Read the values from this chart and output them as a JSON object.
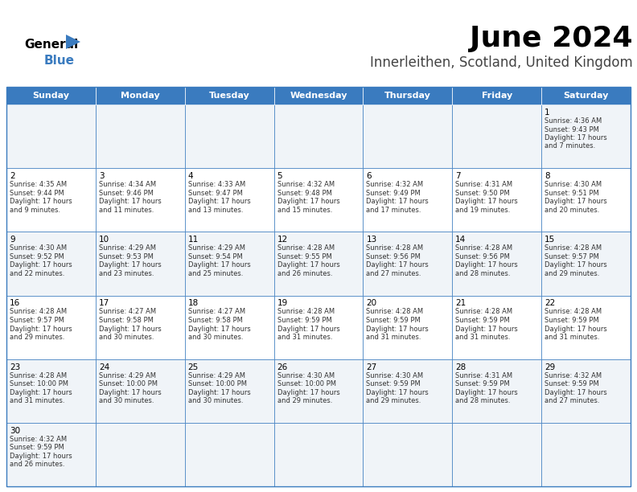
{
  "title": "June 2024",
  "subtitle": "Innerleithen, Scotland, United Kingdom",
  "days_of_week": [
    "Sunday",
    "Monday",
    "Tuesday",
    "Wednesday",
    "Thursday",
    "Friday",
    "Saturday"
  ],
  "header_bg": "#3a7bbf",
  "header_text": "#ffffff",
  "row_bg": [
    "#f0f4f8",
    "#ffffff",
    "#f0f4f8",
    "#ffffff",
    "#f0f4f8",
    "#f0f4f8"
  ],
  "border_color": "#3a7bbf",
  "inner_border_color": "#cccccc",
  "day_num_color": "#000000",
  "cell_text_color": "#333333",
  "calendar_data": [
    [
      {
        "day": "",
        "sunrise": "",
        "sunset": "",
        "daylight": ""
      },
      {
        "day": "",
        "sunrise": "",
        "sunset": "",
        "daylight": ""
      },
      {
        "day": "",
        "sunrise": "",
        "sunset": "",
        "daylight": ""
      },
      {
        "day": "",
        "sunrise": "",
        "sunset": "",
        "daylight": ""
      },
      {
        "day": "",
        "sunrise": "",
        "sunset": "",
        "daylight": ""
      },
      {
        "day": "",
        "sunrise": "",
        "sunset": "",
        "daylight": ""
      },
      {
        "day": "1",
        "sunrise": "4:36 AM",
        "sunset": "9:43 PM",
        "daylight": "17 hours\nand 7 minutes."
      }
    ],
    [
      {
        "day": "2",
        "sunrise": "4:35 AM",
        "sunset": "9:44 PM",
        "daylight": "17 hours\nand 9 minutes."
      },
      {
        "day": "3",
        "sunrise": "4:34 AM",
        "sunset": "9:46 PM",
        "daylight": "17 hours\nand 11 minutes."
      },
      {
        "day": "4",
        "sunrise": "4:33 AM",
        "sunset": "9:47 PM",
        "daylight": "17 hours\nand 13 minutes."
      },
      {
        "day": "5",
        "sunrise": "4:32 AM",
        "sunset": "9:48 PM",
        "daylight": "17 hours\nand 15 minutes."
      },
      {
        "day": "6",
        "sunrise": "4:32 AM",
        "sunset": "9:49 PM",
        "daylight": "17 hours\nand 17 minutes."
      },
      {
        "day": "7",
        "sunrise": "4:31 AM",
        "sunset": "9:50 PM",
        "daylight": "17 hours\nand 19 minutes."
      },
      {
        "day": "8",
        "sunrise": "4:30 AM",
        "sunset": "9:51 PM",
        "daylight": "17 hours\nand 20 minutes."
      }
    ],
    [
      {
        "day": "9",
        "sunrise": "4:30 AM",
        "sunset": "9:52 PM",
        "daylight": "17 hours\nand 22 minutes."
      },
      {
        "day": "10",
        "sunrise": "4:29 AM",
        "sunset": "9:53 PM",
        "daylight": "17 hours\nand 23 minutes."
      },
      {
        "day": "11",
        "sunrise": "4:29 AM",
        "sunset": "9:54 PM",
        "daylight": "17 hours\nand 25 minutes."
      },
      {
        "day": "12",
        "sunrise": "4:28 AM",
        "sunset": "9:55 PM",
        "daylight": "17 hours\nand 26 minutes."
      },
      {
        "day": "13",
        "sunrise": "4:28 AM",
        "sunset": "9:56 PM",
        "daylight": "17 hours\nand 27 minutes."
      },
      {
        "day": "14",
        "sunrise": "4:28 AM",
        "sunset": "9:56 PM",
        "daylight": "17 hours\nand 28 minutes."
      },
      {
        "day": "15",
        "sunrise": "4:28 AM",
        "sunset": "9:57 PM",
        "daylight": "17 hours\nand 29 minutes."
      }
    ],
    [
      {
        "day": "16",
        "sunrise": "4:28 AM",
        "sunset": "9:57 PM",
        "daylight": "17 hours\nand 29 minutes."
      },
      {
        "day": "17",
        "sunrise": "4:27 AM",
        "sunset": "9:58 PM",
        "daylight": "17 hours\nand 30 minutes."
      },
      {
        "day": "18",
        "sunrise": "4:27 AM",
        "sunset": "9:58 PM",
        "daylight": "17 hours\nand 30 minutes."
      },
      {
        "day": "19",
        "sunrise": "4:28 AM",
        "sunset": "9:59 PM",
        "daylight": "17 hours\nand 31 minutes."
      },
      {
        "day": "20",
        "sunrise": "4:28 AM",
        "sunset": "9:59 PM",
        "daylight": "17 hours\nand 31 minutes."
      },
      {
        "day": "21",
        "sunrise": "4:28 AM",
        "sunset": "9:59 PM",
        "daylight": "17 hours\nand 31 minutes."
      },
      {
        "day": "22",
        "sunrise": "4:28 AM",
        "sunset": "9:59 PM",
        "daylight": "17 hours\nand 31 minutes."
      }
    ],
    [
      {
        "day": "23",
        "sunrise": "4:28 AM",
        "sunset": "10:00 PM",
        "daylight": "17 hours\nand 31 minutes."
      },
      {
        "day": "24",
        "sunrise": "4:29 AM",
        "sunset": "10:00 PM",
        "daylight": "17 hours\nand 30 minutes."
      },
      {
        "day": "25",
        "sunrise": "4:29 AM",
        "sunset": "10:00 PM",
        "daylight": "17 hours\nand 30 minutes."
      },
      {
        "day": "26",
        "sunrise": "4:30 AM",
        "sunset": "10:00 PM",
        "daylight": "17 hours\nand 29 minutes."
      },
      {
        "day": "27",
        "sunrise": "4:30 AM",
        "sunset": "9:59 PM",
        "daylight": "17 hours\nand 29 minutes."
      },
      {
        "day": "28",
        "sunrise": "4:31 AM",
        "sunset": "9:59 PM",
        "daylight": "17 hours\nand 28 minutes."
      },
      {
        "day": "29",
        "sunrise": "4:32 AM",
        "sunset": "9:59 PM",
        "daylight": "17 hours\nand 27 minutes."
      }
    ],
    [
      {
        "day": "30",
        "sunrise": "4:32 AM",
        "sunset": "9:59 PM",
        "daylight": "17 hours\nand 26 minutes."
      },
      {
        "day": "",
        "sunrise": "",
        "sunset": "",
        "daylight": ""
      },
      {
        "day": "",
        "sunrise": "",
        "sunset": "",
        "daylight": ""
      },
      {
        "day": "",
        "sunrise": "",
        "sunset": "",
        "daylight": ""
      },
      {
        "day": "",
        "sunrise": "",
        "sunset": "",
        "daylight": ""
      },
      {
        "day": "",
        "sunrise": "",
        "sunset": "",
        "daylight": ""
      },
      {
        "day": "",
        "sunrise": "",
        "sunset": "",
        "daylight": ""
      }
    ]
  ],
  "figsize": [
    7.92,
    6.12
  ],
  "dpi": 100
}
